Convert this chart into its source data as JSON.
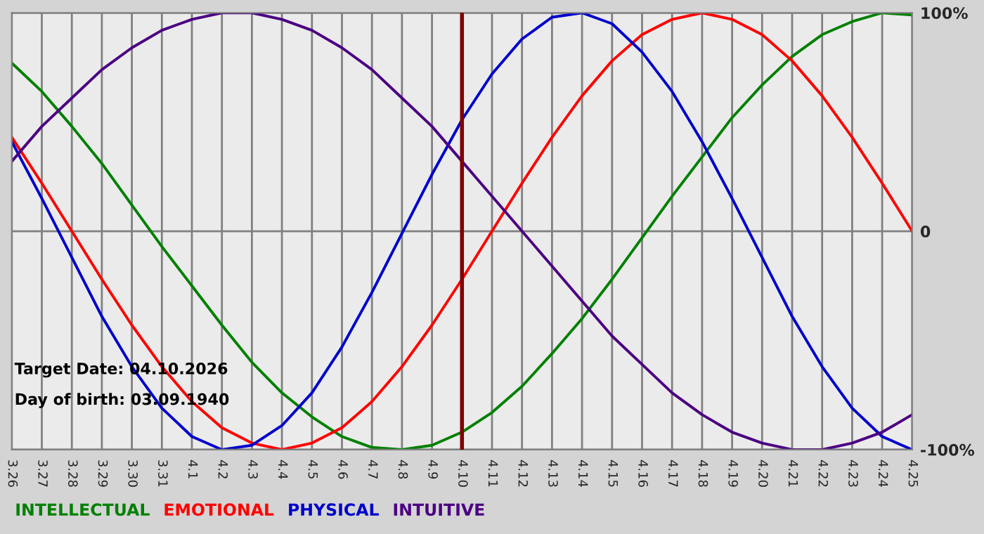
{
  "chart_data": {
    "type": "line",
    "categories": [
      "3.26",
      "3.27",
      "3.28",
      "3.29",
      "3.30",
      "3.31",
      "4.1",
      "4.2",
      "4.3",
      "4.4",
      "4.5",
      "4.6",
      "4.7",
      "4.8",
      "4.9",
      "4.10",
      "4.11",
      "4.12",
      "4.13",
      "4.14",
      "4.15",
      "4.16",
      "4.17",
      "4.18",
      "4.19",
      "4.20",
      "4.21",
      "4.22",
      "4.23",
      "4.24",
      "4.25"
    ],
    "series": [
      {
        "name": "INTELLECTUAL",
        "color": "#008000",
        "values": [
          77,
          64,
          48,
          31,
          12,
          -7,
          -25,
          -43,
          -60,
          -74,
          -85,
          -94,
          -99,
          -100,
          -98,
          -92,
          -83,
          -71,
          -56,
          -40,
          -22,
          -3,
          16,
          34,
          52,
          67,
          80,
          90,
          96,
          100,
          99
        ]
      },
      {
        "name": "EMOTIONAL",
        "color": "#ff0000",
        "values": [
          43,
          22,
          0,
          -22,
          -43,
          -62,
          -78,
          -90,
          -97,
          -100,
          -97,
          -90,
          -78,
          -62,
          -43,
          -22,
          0,
          22,
          43,
          62,
          78,
          90,
          97,
          100,
          97,
          90,
          78,
          62,
          43,
          22,
          0
        ]
      },
      {
        "name": "PHYSICAL",
        "color": "#0000cc",
        "values": [
          41,
          15,
          -12,
          -39,
          -62,
          -81,
          -94,
          -100,
          -98,
          -89,
          -74,
          -53,
          -28,
          -1,
          26,
          51,
          72,
          88,
          98,
          100,
          95,
          82,
          64,
          41,
          15,
          -12,
          -39,
          -62,
          -81,
          -94,
          -100
        ]
      },
      {
        "name": "INTUITIVE",
        "color": "#4b0082",
        "values": [
          32,
          48,
          61,
          74,
          84,
          92,
          97,
          100,
          100,
          97,
          92,
          84,
          74,
          61,
          48,
          32,
          16,
          0,
          -16,
          -32,
          -48,
          -61,
          -74,
          -84,
          -92,
          -97,
          -100,
          -100,
          -97,
          -92,
          -84
        ]
      }
    ],
    "ylim": [
      -100,
      100
    ],
    "yticks": [
      {
        "value": 100,
        "label": "100%"
      },
      0,
      {
        "value": -100,
        "label": "-100%"
      }
    ],
    "ref_lines": [
      {
        "axis": "x",
        "value": "4.10",
        "color": "#800000"
      }
    ],
    "annotations": [
      "Target Date: 04.10.2026",
      "Day of birth: 03.09.1940"
    ],
    "grid": true,
    "legend": "bottom",
    "marker": "none",
    "line_style": "solid"
  }
}
